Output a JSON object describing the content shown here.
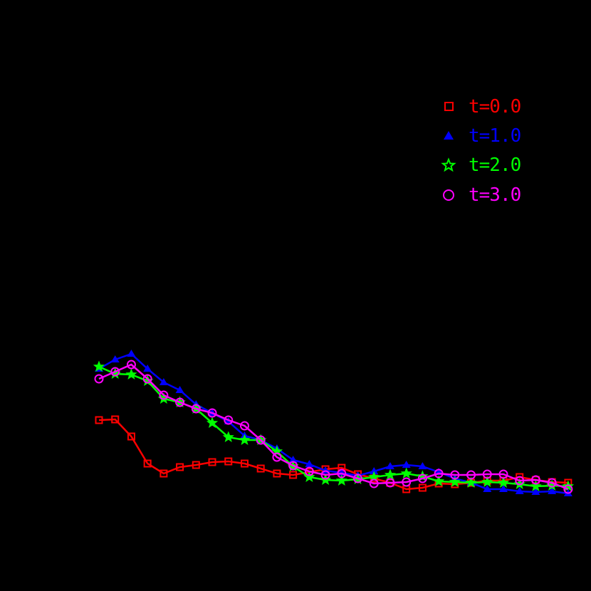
{
  "chart_data": {
    "type": "line",
    "title": "",
    "xlabel": "",
    "ylabel": "",
    "grid": false,
    "legend_position": "upper right",
    "background": "#000000",
    "note": "Axes, ticks and labels are rendered black on black background (not visible); y values are estimated in relative plot units (pixel-derived).",
    "x": [
      1,
      2,
      3,
      4,
      5,
      6,
      7,
      8,
      9,
      10,
      11,
      12,
      13,
      14,
      15,
      16,
      17,
      18,
      19,
      20,
      21,
      22,
      23,
      24,
      25,
      26,
      27,
      28,
      29,
      30
    ],
    "series": [
      {
        "name": "t=0.0",
        "color": "#FF0000",
        "marker": "square-open",
        "values": [
          1.6,
          1.61,
          1.37,
          0.99,
          0.85,
          0.94,
          0.97,
          1.01,
          1.02,
          0.99,
          0.92,
          0.85,
          0.83,
          0.87,
          0.91,
          0.93,
          0.84,
          0.78,
          0.72,
          0.63,
          0.65,
          0.71,
          0.7,
          0.72,
          0.75,
          0.75,
          0.8,
          0.76,
          0.73,
          0.72
        ]
      },
      {
        "name": "t=1.0",
        "color": "#0000FF",
        "marker": "triangle-filled",
        "values": [
          2.32,
          2.45,
          2.53,
          2.32,
          2.13,
          2.02,
          1.82,
          1.7,
          1.58,
          1.38,
          1.32,
          1.2,
          1.04,
          0.98,
          0.89,
          0.86,
          0.82,
          0.88,
          0.95,
          0.97,
          0.95,
          0.87,
          0.78,
          0.72,
          0.63,
          0.63,
          0.6,
          0.59,
          0.6,
          0.57
        ]
      },
      {
        "name": "t=2.0",
        "color": "#00FF00",
        "marker": "star-open",
        "values": [
          2.35,
          2.25,
          2.24,
          2.15,
          1.9,
          1.85,
          1.76,
          1.56,
          1.36,
          1.32,
          1.32,
          1.16,
          0.95,
          0.8,
          0.76,
          0.75,
          0.77,
          0.8,
          0.83,
          0.85,
          0.81,
          0.74,
          0.73,
          0.72,
          0.73,
          0.72,
          0.7,
          0.67,
          0.68,
          0.67
        ]
      },
      {
        "name": "t=3.0",
        "color": "#FF00FF",
        "marker": "circle-open",
        "values": [
          2.18,
          2.28,
          2.38,
          2.18,
          1.95,
          1.85,
          1.76,
          1.7,
          1.6,
          1.52,
          1.32,
          1.08,
          0.96,
          0.88,
          0.83,
          0.85,
          0.78,
          0.71,
          0.72,
          0.73,
          0.78,
          0.85,
          0.83,
          0.83,
          0.84,
          0.84,
          0.75,
          0.76,
          0.72,
          0.63
        ]
      }
    ]
  },
  "legend": {
    "items": [
      {
        "label": "t=0.0",
        "color": "#FF0000",
        "icon": "square-open-icon"
      },
      {
        "label": "t=1.0",
        "color": "#0000FF",
        "icon": "triangle-filled-icon"
      },
      {
        "label": "t=2.0",
        "color": "#00FF00",
        "icon": "star-open-icon"
      },
      {
        "label": "t=3.0",
        "color": "#FF00FF",
        "icon": "circle-open-icon"
      }
    ]
  }
}
